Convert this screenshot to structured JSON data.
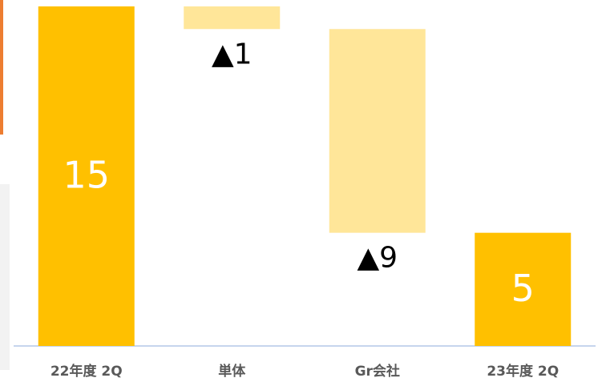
{
  "chart_data": {
    "type": "waterfall",
    "categories": [
      "22年度 2Q",
      "単体",
      "Gr会社",
      "23年度 2Q"
    ],
    "values": [
      15,
      -1,
      -9,
      5
    ],
    "value_labels": [
      "15",
      "▲1",
      "▲9",
      "5"
    ],
    "is_total": [
      true,
      false,
      false,
      true
    ],
    "total_color": "#ffc000",
    "delta_color": "#ffe699"
  }
}
